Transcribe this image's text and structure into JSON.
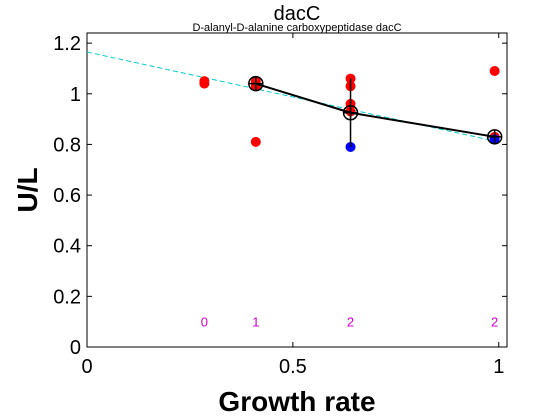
{
  "chart_data": {
    "type": "scatter",
    "title": "dacC",
    "subtitle": "D-alanyl-D-alanine carboxypeptidase dacC",
    "xlabel": "Growth rate",
    "ylabel": "U/L",
    "xlim": [
      0,
      1.02
    ],
    "ylim": [
      0,
      1.24
    ],
    "xticks": [
      0,
      0.5,
      1
    ],
    "xtick_labels": [
      "0",
      "0.5",
      "1"
    ],
    "yticks": [
      0,
      0.2,
      0.4,
      0.6,
      0.8,
      1,
      1.2
    ],
    "ytick_labels": [
      "0",
      "0.2",
      "0.4",
      "0.6",
      "0.8",
      "1",
      "1.2"
    ],
    "grid": false,
    "colors": {
      "red_points": "#ff0000",
      "blue_points": "#0000ff",
      "mean_line": "#000000",
      "fit_line": "#00cccc",
      "count_labels": "#cc00cc"
    },
    "fit_line": {
      "x": [
        0,
        1
      ],
      "y": [
        1.165,
        0.81
      ]
    },
    "red_points": {
      "x": [
        0.285,
        0.285,
        0.41,
        0.41,
        0.41,
        0.41,
        0.64,
        0.64,
        0.64,
        0.64,
        0.99,
        0.99,
        0.99
      ],
      "y": [
        1.05,
        1.04,
        1.05,
        1.04,
        1.03,
        0.81,
        1.06,
        1.03,
        0.96,
        0.93,
        1.09,
        0.83,
        0.825
      ]
    },
    "blue_points": {
      "x": [
        0.64,
        0.99
      ],
      "y": [
        0.79,
        0.82
      ]
    },
    "means": {
      "x": [
        0.41,
        0.64,
        0.99
      ],
      "y": [
        1.04,
        0.925,
        0.83
      ],
      "err_low": [
        1.03,
        0.79,
        0.82
      ],
      "err_high": [
        1.05,
        1.06,
        0.84
      ]
    },
    "count_labels": {
      "x": [
        0.285,
        0.41,
        0.64,
        0.99
      ],
      "y": [
        0.1,
        0.1,
        0.1,
        0.1
      ],
      "labels": [
        "0",
        "1",
        "2",
        "2"
      ]
    }
  }
}
